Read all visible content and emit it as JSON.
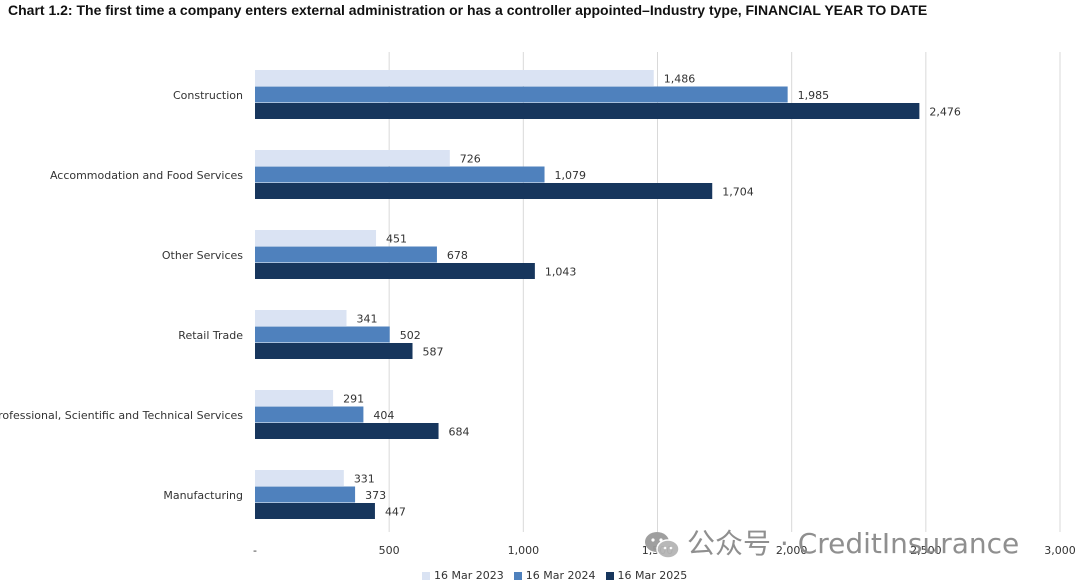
{
  "title": "Chart 1.2:  The first time a company enters external administration or has a controller appointed–Industry type, FINANCIAL YEAR TO DATE",
  "watermark": "公众号 · CreditInsurance",
  "chart_data": {
    "type": "bar",
    "orientation": "horizontal",
    "title": "Chart 1.2:  The first time a company enters external administration or has a controller appointed–Industry type, FINANCIAL YEAR TO DATE",
    "categories": [
      "Construction",
      "Accommodation and Food Services",
      "Other Services",
      "Retail Trade",
      "Professional, Scientific and Technical Services",
      "Manufacturing"
    ],
    "series": [
      {
        "name": "16 Mar 2023",
        "color": "#dae3f3",
        "values": [
          1486,
          726,
          451,
          341,
          291,
          331
        ],
        "labels": [
          "1,486",
          "726",
          "451",
          "341",
          "291",
          "331"
        ]
      },
      {
        "name": "16 Mar 2024",
        "color": "#4f81bd",
        "values": [
          1985,
          1079,
          678,
          502,
          404,
          373
        ],
        "labels": [
          "1,985",
          "1,079",
          "678",
          "502",
          "404",
          "373"
        ]
      },
      {
        "name": "16 Mar 2025",
        "color": "#17365d",
        "values": [
          2476,
          1704,
          1043,
          587,
          684,
          447
        ],
        "labels": [
          "2,476",
          "1,704",
          "1,043",
          "587",
          "684",
          "447"
        ]
      }
    ],
    "x_ticks": [
      0,
      500,
      1000,
      1500,
      2000,
      2500,
      3000
    ],
    "x_tick_labels": [
      "-",
      "500",
      "1,000",
      "1,500",
      "2,000",
      "2,500",
      "3,000"
    ],
    "xlim": [
      0,
      3000
    ],
    "grid": true,
    "legend_position": "bottom"
  }
}
